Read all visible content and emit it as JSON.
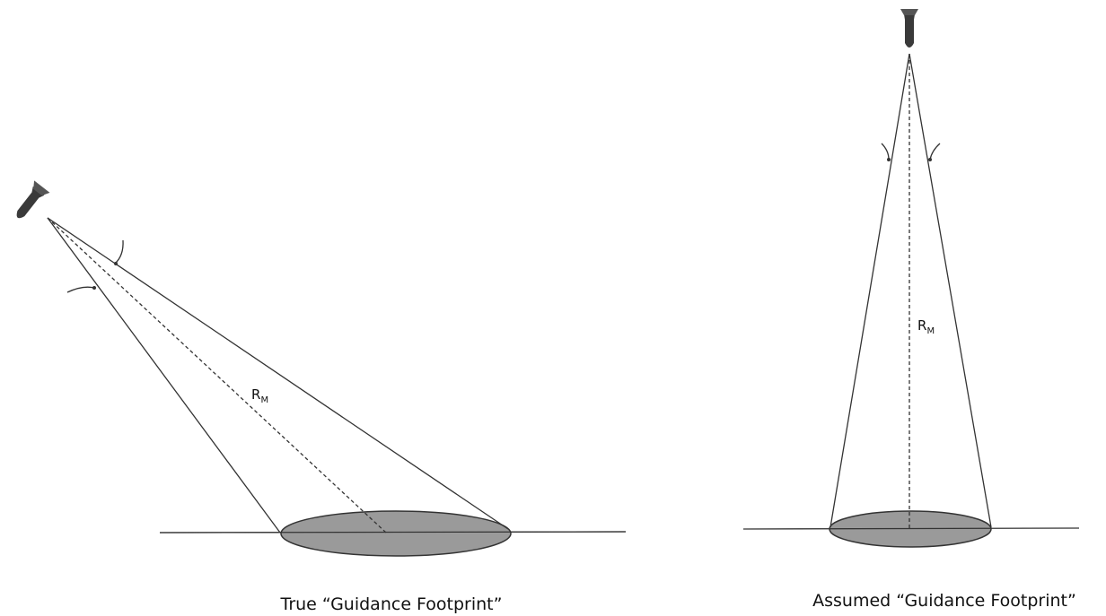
{
  "left": {
    "range_label": {
      "base": "R",
      "subscript": "M"
    },
    "caption": "True “Guidance Footprint”"
  },
  "right": {
    "range_label": {
      "base": "R",
      "subscript": "M"
    },
    "caption": "Assumed “Guidance Footprint”"
  }
}
